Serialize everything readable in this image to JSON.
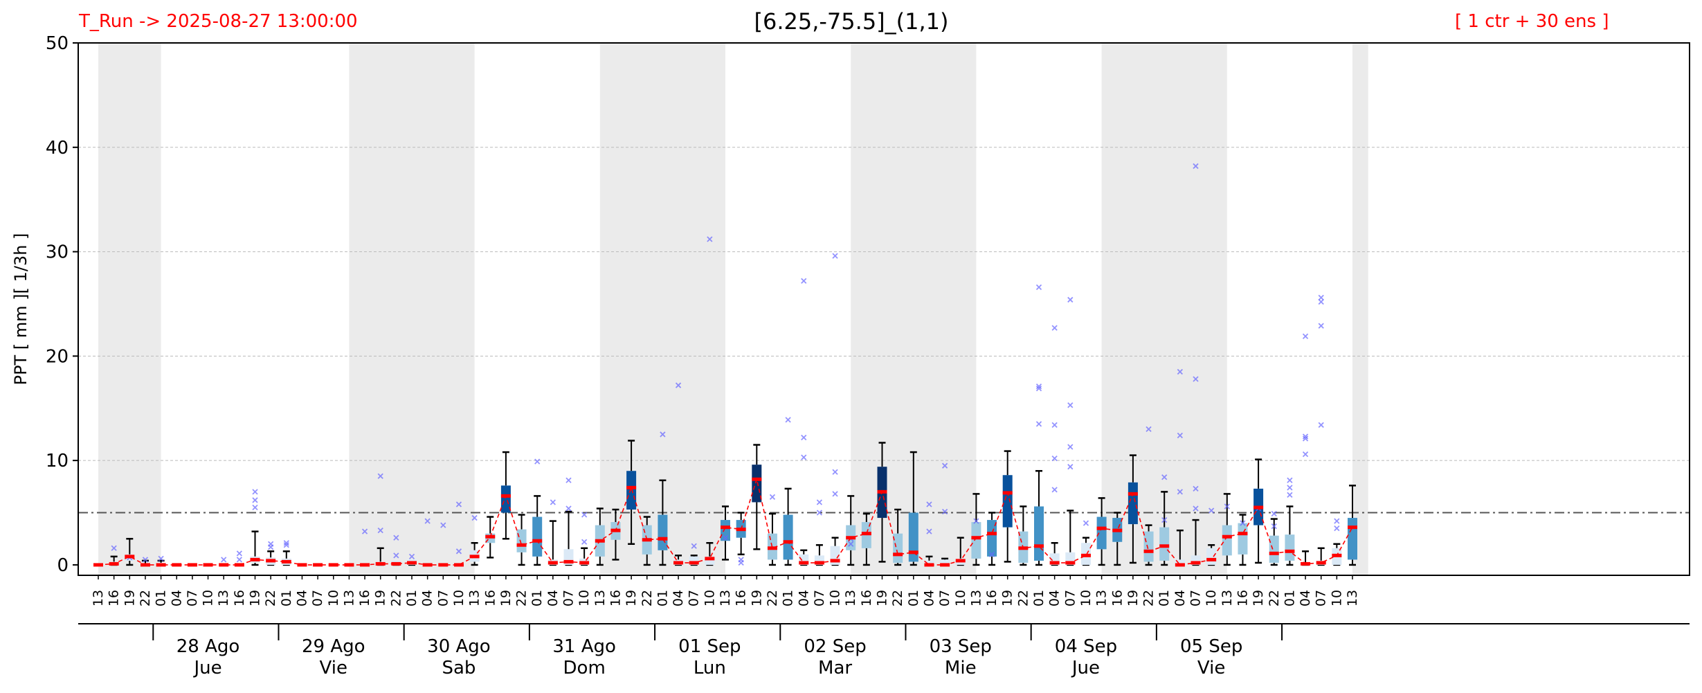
{
  "header": {
    "run_label": "T_Run -> 2025-08-27  13:00:00",
    "title": "[6.25,-75.5]_(1,1)",
    "ensemble_label": "[ 1 ctr + 30 ens ]"
  },
  "chart_data": {
    "type": "box",
    "ylabel": "PPT  [ mm ][ 1/3h ]",
    "ylim": [
      -1,
      50
    ],
    "yticks": [
      0,
      10,
      20,
      30,
      40,
      50
    ],
    "grid": "horizontal dashed",
    "threshold_line": 5,
    "hour_labels": [
      "13",
      "16",
      "19",
      "22",
      "01",
      "04",
      "07",
      "10",
      "13",
      "16",
      "19",
      "22",
      "01",
      "04",
      "07",
      "10",
      "13",
      "16",
      "19",
      "22",
      "01",
      "04",
      "07",
      "10",
      "13",
      "16",
      "19",
      "22",
      "01",
      "04",
      "07",
      "10",
      "13",
      "16",
      "19",
      "22",
      "01",
      "04",
      "07",
      "10",
      "13",
      "16",
      "19",
      "22",
      "01",
      "04",
      "07",
      "10",
      "13",
      "16",
      "19",
      "22",
      "01",
      "04",
      "07",
      "10",
      "13",
      "16",
      "19",
      "22",
      "01",
      "04",
      "07",
      "10",
      "13",
      "16",
      "19",
      "22",
      "01",
      "04",
      "07",
      "10",
      "13",
      "16",
      "19",
      "22",
      "01",
      "04",
      "07",
      "10",
      "13"
    ],
    "day_labels": [
      {
        "date": "28 Ago",
        "weekday": "Jue"
      },
      {
        "date": "29 Ago",
        "weekday": "Vie"
      },
      {
        "date": "30 Ago",
        "weekday": "Sab"
      },
      {
        "date": "31 Ago",
        "weekday": "Dom"
      },
      {
        "date": "01 Sep",
        "weekday": "Lun"
      },
      {
        "date": "02 Sep",
        "weekday": "Mar"
      },
      {
        "date": "03 Sep",
        "weekday": "Mie"
      },
      {
        "date": "04 Sep",
        "weekday": "Jue"
      },
      {
        "date": "05 Sep",
        "weekday": "Vie"
      }
    ],
    "night_bands": [
      [
        0,
        4
      ],
      [
        16,
        24
      ],
      [
        32,
        40
      ],
      [
        48,
        56
      ],
      [
        64,
        72
      ],
      [
        80,
        81
      ]
    ],
    "series": [
      {
        "name": "ensemble",
        "mean": [
          0,
          0.1,
          0.8,
          0,
          0,
          0,
          0,
          0,
          0,
          0,
          0.5,
          0.4,
          0.3,
          0,
          0,
          0,
          0,
          0,
          0.1,
          0.1,
          0.2,
          0,
          0,
          0,
          0.8,
          2.7,
          6.6,
          1.9,
          2.3,
          0.2,
          0.3,
          0.2,
          2.3,
          3.3,
          7.4,
          2.4,
          2.5,
          0.2,
          0.2,
          0.6,
          3.6,
          3.4,
          8.2,
          1.6,
          2.2,
          0.2,
          0.2,
          0.4,
          2.6,
          3.0,
          7.0,
          1.0,
          1.2,
          0,
          0,
          0.4,
          2.6,
          3.0,
          6.9,
          1.6,
          1.8,
          0.2,
          0.2,
          0.9,
          3.5,
          3.3,
          6.8,
          1.3,
          1.8,
          0,
          0.2,
          0.5,
          2.7,
          3.0,
          5.5,
          1.1,
          1.3,
          0.1,
          0.2,
          0.9,
          3.6
        ],
        "boxes": [
          [
            0,
            0
          ],
          [
            0,
            0.3
          ],
          [
            0.4,
            1
          ],
          [
            0,
            0.1
          ],
          [
            0,
            0.2
          ],
          [
            0,
            0
          ],
          [
            0,
            0
          ],
          [
            0,
            0
          ],
          [
            0,
            0.1
          ],
          [
            0,
            0.1
          ],
          [
            0.2,
            0.8
          ],
          [
            0,
            0.7
          ],
          [
            0,
            0.6
          ],
          [
            0,
            0
          ],
          [
            0,
            0
          ],
          [
            0,
            0
          ],
          [
            0,
            0
          ],
          [
            0,
            0
          ],
          [
            0,
            0.3
          ],
          [
            0,
            0.4
          ],
          [
            0,
            0.5
          ],
          [
            0,
            0
          ],
          [
            0,
            0
          ],
          [
            0,
            0
          ],
          [
            0.3,
            1.4
          ],
          [
            2.1,
            3.0
          ],
          [
            5.0,
            7.6
          ],
          [
            1.2,
            3.4
          ],
          [
            0.8,
            4.6
          ],
          [
            0,
            0.5
          ],
          [
            0,
            1.5
          ],
          [
            0,
            0.6
          ],
          [
            0.8,
            3.8
          ],
          [
            2.4,
            4.1
          ],
          [
            5.3,
            9.0
          ],
          [
            1.0,
            3.8
          ],
          [
            1.4,
            4.8
          ],
          [
            0,
            0.5
          ],
          [
            0,
            0.8
          ],
          [
            0,
            0.8
          ],
          [
            2.3,
            4.3
          ],
          [
            2.6,
            4.3
          ],
          [
            6.0,
            9.6
          ],
          [
            0.5,
            3.0
          ],
          [
            0.5,
            4.8
          ],
          [
            0,
            1.0
          ],
          [
            0,
            0.9
          ],
          [
            0,
            1.8
          ],
          [
            1.4,
            3.8
          ],
          [
            1.6,
            4.1
          ],
          [
            4.5,
            9.4
          ],
          [
            0.2,
            3.0
          ],
          [
            0.3,
            5.0
          ],
          [
            0,
            0.4
          ],
          [
            0,
            0.5
          ],
          [
            0,
            0.6
          ],
          [
            0.6,
            4.1
          ],
          [
            0.8,
            4.3
          ],
          [
            3.6,
            8.6
          ],
          [
            0.2,
            3.2
          ],
          [
            0.4,
            5.6
          ],
          [
            0,
            1.1
          ],
          [
            0,
            1.2
          ],
          [
            0,
            2.1
          ],
          [
            1.5,
            4.6
          ],
          [
            2.2,
            4.5
          ],
          [
            3.9,
            7.9
          ],
          [
            0.3,
            3.2
          ],
          [
            0.4,
            3.6
          ],
          [
            0,
            0.5
          ],
          [
            0,
            0.9
          ],
          [
            0,
            1.6
          ],
          [
            0.9,
            3.8
          ],
          [
            1.0,
            4.0
          ],
          [
            3.8,
            7.3
          ],
          [
            0.2,
            2.8
          ],
          [
            0.4,
            2.9
          ],
          [
            0,
            0.2
          ],
          [
            0,
            0.4
          ],
          [
            0,
            1.6
          ],
          [
            0.5,
            4.5
          ]
        ],
        "whisker_high": [
          0,
          0.8,
          2.5,
          0.4,
          0.4,
          0,
          0,
          0,
          0,
          0,
          3.2,
          1.3,
          1.3,
          0,
          0,
          0,
          0,
          0,
          1.6,
          0.3,
          0.5,
          0,
          0,
          0,
          2.1,
          4.6,
          10.8,
          4.8,
          6.6,
          4.2,
          5.1,
          1.6,
          5.4,
          5.3,
          11.9,
          4.6,
          8.1,
          0.9,
          0.9,
          2.1,
          5.6,
          5.0,
          11.5,
          4.9,
          7.3,
          1.4,
          1.9,
          2.6,
          6.6,
          4.9,
          11.7,
          5.3,
          10.8,
          0.8,
          0.6,
          2.6,
          6.8,
          5.0,
          10.9,
          5.6,
          9.0,
          2.1,
          5.2,
          2.6,
          6.4,
          5.0,
          10.5,
          3.8,
          7.0,
          3.3,
          4.3,
          1.9,
          6.8,
          4.8,
          10.1,
          4.4,
          5.6,
          1.3,
          1.6,
          2.0,
          7.6
        ],
        "whisker_low": [
          0,
          0,
          0,
          0,
          0,
          0,
          0,
          0,
          0,
          0,
          0,
          0,
          0,
          0,
          0,
          0,
          0,
          0,
          0,
          0,
          0,
          0,
          0,
          0,
          0,
          0.7,
          2.5,
          0,
          0,
          0,
          0,
          0,
          0,
          0.5,
          2.0,
          0,
          0,
          0,
          0,
          0,
          0.5,
          1.0,
          1.5,
          0,
          0,
          0,
          0,
          0,
          0,
          0,
          0.3,
          0,
          0,
          0,
          0,
          0,
          0,
          0,
          0.3,
          0,
          0,
          0,
          0,
          0,
          0,
          0,
          0.2,
          0,
          0,
          0,
          0,
          0,
          0,
          0,
          0.2,
          0,
          0,
          0,
          0,
          0,
          0
        ],
        "outliers": [
          [
            1,
            1.6
          ],
          [
            2,
            0.7
          ],
          [
            3,
            0.5
          ],
          [
            4,
            0.6
          ],
          [
            8,
            0.5
          ],
          [
            9,
            1.1
          ],
          [
            9,
            0.5
          ],
          [
            10,
            7.0
          ],
          [
            10,
            6.2
          ],
          [
            10,
            5.5
          ],
          [
            11,
            2.0
          ],
          [
            11,
            1.7
          ],
          [
            12,
            2.1
          ],
          [
            12,
            1.9
          ],
          [
            17,
            3.2
          ],
          [
            18,
            8.5
          ],
          [
            18,
            3.3
          ],
          [
            19,
            2.6
          ],
          [
            19,
            0.9
          ],
          [
            20,
            0.8
          ],
          [
            21,
            4.2
          ],
          [
            22,
            3.8
          ],
          [
            23,
            5.8
          ],
          [
            23,
            1.3
          ],
          [
            24,
            4.5
          ],
          [
            28,
            9.9
          ],
          [
            29,
            6.0
          ],
          [
            30,
            8.1
          ],
          [
            30,
            5.4
          ],
          [
            31,
            4.8
          ],
          [
            31,
            2.2
          ],
          [
            36,
            12.5
          ],
          [
            37,
            17.2
          ],
          [
            38,
            1.8
          ],
          [
            39,
            31.2
          ],
          [
            40,
            2.6
          ],
          [
            41,
            0.5
          ],
          [
            41,
            0.2
          ],
          [
            43,
            6.5
          ],
          [
            44,
            13.9
          ],
          [
            45,
            27.2
          ],
          [
            45,
            12.2
          ],
          [
            45,
            10.3
          ],
          [
            46,
            6.0
          ],
          [
            46,
            5.0
          ],
          [
            47,
            29.6
          ],
          [
            47,
            8.9
          ],
          [
            47,
            6.8
          ],
          [
            48,
            2.5
          ],
          [
            48,
            2.0
          ],
          [
            53,
            5.8
          ],
          [
            53,
            3.2
          ],
          [
            54,
            9.5
          ],
          [
            54,
            5.1
          ],
          [
            56,
            4.2
          ],
          [
            57,
            1.0
          ],
          [
            60,
            26.6
          ],
          [
            60,
            17.1
          ],
          [
            60,
            16.9
          ],
          [
            60,
            13.5
          ],
          [
            61,
            22.7
          ],
          [
            61,
            13.4
          ],
          [
            61,
            10.2
          ],
          [
            61,
            7.2
          ],
          [
            62,
            25.4
          ],
          [
            62,
            15.3
          ],
          [
            62,
            11.3
          ],
          [
            62,
            9.4
          ],
          [
            63,
            4.0
          ],
          [
            67,
            13.0
          ],
          [
            68,
            8.4
          ],
          [
            68,
            4.3
          ],
          [
            69,
            18.5
          ],
          [
            69,
            12.4
          ],
          [
            69,
            7.0
          ],
          [
            70,
            38.2
          ],
          [
            70,
            17.8
          ],
          [
            70,
            7.3
          ],
          [
            70,
            5.4
          ],
          [
            71,
            5.2
          ],
          [
            72,
            5.6
          ],
          [
            73,
            4.0
          ],
          [
            74,
            5.4
          ],
          [
            75,
            4.9
          ],
          [
            75,
            3.7
          ],
          [
            76,
            8.1
          ],
          [
            76,
            7.4
          ],
          [
            76,
            6.7
          ],
          [
            77,
            21.9
          ],
          [
            77,
            12.3
          ],
          [
            77,
            12.1
          ],
          [
            77,
            10.6
          ],
          [
            78,
            25.6
          ],
          [
            78,
            25.2
          ],
          [
            78,
            22.9
          ],
          [
            78,
            13.4
          ],
          [
            79,
            4.2
          ],
          [
            79,
            3.5
          ]
        ]
      }
    ]
  },
  "colors": {
    "night_band": "#ebebeb",
    "median": "#ff0000",
    "mean_line": "#ff0000",
    "outlier": "#6666ff",
    "threshold": "#555555",
    "grid": "#bbbbbb",
    "box_scale": [
      "#dbe9f6",
      "#9ecae1",
      "#4292c6",
      "#08519c",
      "#08306b"
    ],
    "header_red": "#ff0000"
  }
}
